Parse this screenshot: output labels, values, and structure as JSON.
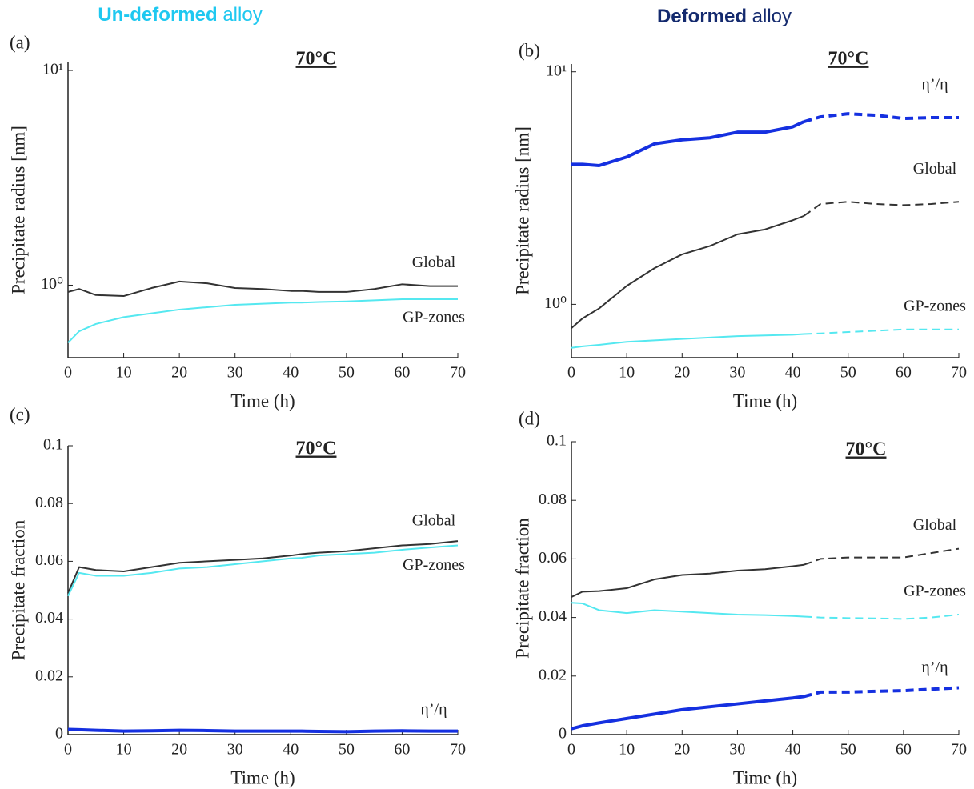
{
  "column_headers": [
    {
      "emphasis": "Un-deformed",
      "rest": "alloy",
      "color": "#1ec8f0"
    },
    {
      "emphasis": "Deformed",
      "rest": "alloy",
      "color": "#142a6e"
    }
  ],
  "chart_data": [
    {
      "type": "line",
      "panel_label": "(a)",
      "title": "70°C",
      "x_label": "Time (h)",
      "y_label": "Precipitate radius [nm]",
      "log_y": true,
      "xlim": [
        0,
        70
      ],
      "xticks": [
        0,
        10,
        20,
        30,
        40,
        50,
        60,
        70
      ],
      "ylim": [
        0.46,
        10.9
      ],
      "yticks": [
        {
          "value": 1,
          "label": "10⁰"
        },
        {
          "value": 10,
          "label": "10¹"
        }
      ],
      "x": [
        0,
        2,
        5,
        10,
        15,
        20,
        25,
        30,
        35,
        40,
        42,
        45,
        50,
        55,
        60,
        65,
        70
      ],
      "series": [
        {
          "name": "Global",
          "color": "#333333",
          "linewidth": 2,
          "values": [
            0.93,
            0.96,
            0.9,
            0.89,
            0.97,
            1.04,
            1.02,
            0.97,
            0.96,
            0.94,
            0.94,
            0.93,
            0.93,
            0.96,
            1.01,
            0.99,
            0.99
          ]
        },
        {
          "name": "GP-zones",
          "color": "#55e8f0",
          "linewidth": 2,
          "values": [
            0.54,
            0.61,
            0.66,
            0.71,
            0.74,
            0.77,
            0.79,
            0.81,
            0.82,
            0.83,
            0.83,
            0.835,
            0.84,
            0.85,
            0.86,
            0.86,
            0.86
          ]
        }
      ]
    },
    {
      "type": "line",
      "panel_label": "(b)",
      "title": "70°C",
      "x_label": "Time (h)",
      "y_label": "Precipitate radius [nm]",
      "log_y": true,
      "xlim": [
        0,
        70
      ],
      "xticks": [
        0,
        10,
        20,
        30,
        40,
        50,
        60,
        70
      ],
      "ylim": [
        0.59,
        10.8
      ],
      "yticks": [
        {
          "value": 1,
          "label": "10⁰"
        },
        {
          "value": 10,
          "label": "10¹"
        }
      ],
      "dash_after": 42,
      "x": [
        0,
        2,
        5,
        10,
        15,
        20,
        25,
        30,
        35,
        40,
        42,
        45,
        50,
        55,
        60,
        65,
        70
      ],
      "series": [
        {
          "name": "η’/η",
          "color": "#1530e0",
          "linewidth": 4,
          "values": [
            4.0,
            4.0,
            3.95,
            4.3,
            4.9,
            5.1,
            5.2,
            5.5,
            5.5,
            5.8,
            6.1,
            6.4,
            6.6,
            6.5,
            6.3,
            6.35,
            6.35
          ]
        },
        {
          "name": "Global",
          "color": "#333333",
          "linewidth": 2,
          "values": [
            0.79,
            0.87,
            0.96,
            1.2,
            1.43,
            1.64,
            1.78,
            2.0,
            2.1,
            2.3,
            2.4,
            2.7,
            2.76,
            2.7,
            2.67,
            2.7,
            2.76
          ]
        },
        {
          "name": "GP-zones",
          "color": "#55e8f0",
          "linewidth": 2,
          "values": [
            0.65,
            0.66,
            0.67,
            0.69,
            0.7,
            0.71,
            0.72,
            0.73,
            0.735,
            0.74,
            0.745,
            0.75,
            0.76,
            0.77,
            0.78,
            0.78,
            0.78
          ]
        }
      ]
    },
    {
      "type": "line",
      "panel_label": "(c)",
      "title": "70°C",
      "x_label": "Time (h)",
      "y_label": "Precipitate fraction",
      "log_y": false,
      "xlim": [
        0,
        70
      ],
      "xticks": [
        0,
        10,
        20,
        30,
        40,
        50,
        60,
        70
      ],
      "ylim": [
        0,
        0.1
      ],
      "yticks": [
        0,
        0.02,
        0.04,
        0.06,
        0.08,
        0.1
      ],
      "x": [
        0,
        2,
        5,
        10,
        15,
        20,
        25,
        30,
        35,
        40,
        42,
        45,
        50,
        55,
        60,
        65,
        70
      ],
      "series": [
        {
          "name": "Global",
          "color": "#333333",
          "linewidth": 2,
          "values": [
            0.049,
            0.058,
            0.057,
            0.0565,
            0.058,
            0.0595,
            0.06,
            0.0605,
            0.061,
            0.062,
            0.0625,
            0.063,
            0.0635,
            0.0645,
            0.0655,
            0.066,
            0.067
          ]
        },
        {
          "name": "GP-zones",
          "color": "#55e8f0",
          "linewidth": 2,
          "values": [
            0.048,
            0.056,
            0.055,
            0.055,
            0.056,
            0.0575,
            0.058,
            0.059,
            0.06,
            0.061,
            0.0612,
            0.062,
            0.0625,
            0.063,
            0.064,
            0.0648,
            0.0655
          ]
        },
        {
          "name": "η’/η",
          "color": "#1530e0",
          "linewidth": 4,
          "values": [
            0.0018,
            0.0017,
            0.0015,
            0.0012,
            0.0013,
            0.0015,
            0.0014,
            0.0012,
            0.0012,
            0.0012,
            0.0012,
            0.0011,
            0.001,
            0.0012,
            0.0013,
            0.0012,
            0.0012
          ]
        }
      ]
    },
    {
      "type": "line",
      "panel_label": "(d)",
      "title": "70°C",
      "x_label": "Time (h)",
      "y_label": "Precipitate fraction",
      "log_y": false,
      "xlim": [
        0,
        70
      ],
      "xticks": [
        0,
        10,
        20,
        30,
        40,
        50,
        60,
        70
      ],
      "ylim": [
        0,
        0.1
      ],
      "yticks": [
        0,
        0.02,
        0.04,
        0.06,
        0.08,
        0.1
      ],
      "dash_after": 42,
      "x": [
        0,
        2,
        5,
        10,
        15,
        20,
        25,
        30,
        35,
        40,
        42,
        45,
        50,
        55,
        60,
        65,
        70
      ],
      "series": [
        {
          "name": "Global",
          "color": "#333333",
          "linewidth": 2,
          "values": [
            0.047,
            0.0488,
            0.049,
            0.05,
            0.053,
            0.0545,
            0.055,
            0.056,
            0.0565,
            0.0575,
            0.058,
            0.06,
            0.0605,
            0.0605,
            0.0605,
            0.062,
            0.0635
          ]
        },
        {
          "name": "GP-zones",
          "color": "#55e8f0",
          "linewidth": 2,
          "values": [
            0.045,
            0.0448,
            0.0425,
            0.0415,
            0.0425,
            0.042,
            0.0415,
            0.041,
            0.0408,
            0.0405,
            0.0403,
            0.04,
            0.0398,
            0.0397,
            0.0395,
            0.04,
            0.041
          ]
        },
        {
          "name": "η’/η",
          "color": "#1530e0",
          "linewidth": 4,
          "values": [
            0.002,
            0.003,
            0.004,
            0.0055,
            0.007,
            0.0085,
            0.0095,
            0.0105,
            0.0115,
            0.0125,
            0.013,
            0.0145,
            0.0145,
            0.0148,
            0.015,
            0.0155,
            0.016
          ]
        }
      ]
    }
  ]
}
